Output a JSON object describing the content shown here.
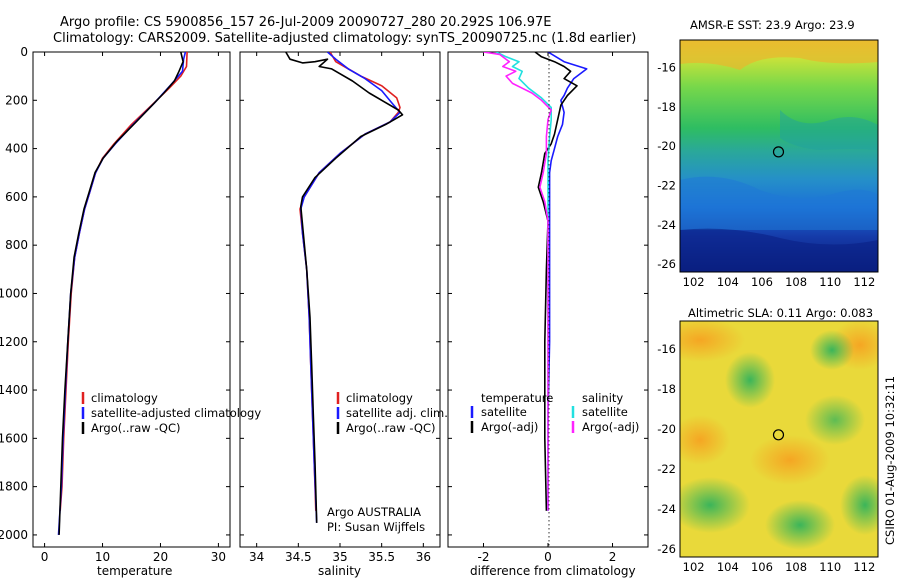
{
  "header": {
    "title_line1": "Argo profile: CS 5900856_157 26-Jul-2009 20090727_280 20.292S 106.97E",
    "title_line2": "Climatology: CARS2009. Satellite-adjusted climatology: synTS_20090725.nc (1.8d earlier)"
  },
  "colors": {
    "climatology": "#e02020",
    "satellite": "#1a1aff",
    "argo": "#000000",
    "salinity_sat": "#22e0e0",
    "salinity_argo": "#ff22ff"
  },
  "chart_data": [
    {
      "id": "temperature",
      "type": "line",
      "xlabel": "temperature",
      "xlim": [
        -2,
        32
      ],
      "ylim": [
        2050,
        0
      ],
      "y_reversed": true,
      "xticks": [
        0,
        10,
        20,
        30
      ],
      "yticks": [
        0,
        200,
        400,
        600,
        800,
        1000,
        1200,
        1400,
        1600,
        1800,
        2000
      ],
      "legend": {
        "position": "lower-right",
        "entries": [
          "climatology",
          "satellite-adjusted climatology",
          "Argo(..raw -QC)"
        ]
      },
      "series": [
        {
          "name": "climatology",
          "color": "#e02020",
          "points": [
            [
              24.6,
              0
            ],
            [
              24.5,
              60
            ],
            [
              23.5,
              100
            ],
            [
              21.5,
              150
            ],
            [
              18.5,
              220
            ],
            [
              15,
              300
            ],
            [
              12,
              380
            ],
            [
              10,
              440
            ],
            [
              8.8,
              500
            ],
            [
              7.8,
              580
            ],
            [
              6.9,
              650
            ],
            [
              6,
              750
            ],
            [
              5.2,
              850
            ],
            [
              4.6,
              1000
            ],
            [
              4.1,
              1200
            ],
            [
              3.7,
              1400
            ],
            [
              3.3,
              1600
            ],
            [
              3.0,
              1800
            ],
            [
              2.7,
              1900
            ]
          ]
        },
        {
          "name": "satellite-adjusted climatology",
          "color": "#1a1aff",
          "points": [
            [
              24.3,
              0
            ],
            [
              24.0,
              30
            ],
            [
              23.8,
              80
            ],
            [
              22,
              130
            ],
            [
              19,
              210
            ],
            [
              15.3,
              300
            ],
            [
              12.2,
              380
            ],
            [
              10.1,
              440
            ],
            [
              8.8,
              500
            ],
            [
              7.8,
              580
            ],
            [
              6.9,
              650
            ],
            [
              6,
              750
            ],
            [
              5.2,
              850
            ],
            [
              4.5,
              1000
            ],
            [
              4.0,
              1200
            ],
            [
              3.6,
              1400
            ],
            [
              3.2,
              1600
            ],
            [
              2.9,
              1800
            ],
            [
              2.4,
              2000
            ]
          ]
        },
        {
          "name": "Argo(..raw -QC)",
          "color": "#000000",
          "points": [
            [
              23.5,
              0
            ],
            [
              23.9,
              40
            ],
            [
              23.2,
              80
            ],
            [
              22.4,
              120
            ],
            [
              20.6,
              170
            ],
            [
              18.6,
              220
            ],
            [
              15.8,
              290
            ],
            [
              12.5,
              370
            ],
            [
              10.1,
              440
            ],
            [
              8.7,
              500
            ],
            [
              7.7,
              580
            ],
            [
              6.8,
              650
            ],
            [
              5.9,
              750
            ],
            [
              5.1,
              850
            ],
            [
              4.5,
              1000
            ],
            [
              4.0,
              1200
            ],
            [
              3.5,
              1400
            ],
            [
              3.1,
              1600
            ],
            [
              2.8,
              1800
            ],
            [
              2.5,
              2000
            ]
          ]
        }
      ]
    },
    {
      "id": "salinity",
      "type": "line",
      "xlabel": "salinity",
      "xlim": [
        33.8,
        36.2
      ],
      "ylim": [
        2050,
        0
      ],
      "y_reversed": true,
      "xticks": [
        34,
        34.5,
        35,
        35.5,
        36
      ],
      "legend": {
        "position": "lower-right",
        "entries": [
          "climatology",
          "satellite adj. clim.",
          "Argo(..raw -QC)"
        ]
      },
      "annotation": [
        "Argo AUSTRALIA",
        "PI: Susan Wijffels"
      ],
      "series": [
        {
          "name": "climatology",
          "color": "#e02020",
          "points": [
            [
              34.88,
              0
            ],
            [
              34.95,
              40
            ],
            [
              35.05,
              60
            ],
            [
              35.25,
              100
            ],
            [
              35.5,
              140
            ],
            [
              35.68,
              190
            ],
            [
              35.72,
              230
            ],
            [
              35.7,
              250
            ],
            [
              35.6,
              290
            ],
            [
              35.3,
              340
            ],
            [
              35.0,
              420
            ],
            [
              34.75,
              500
            ],
            [
              34.57,
              600
            ],
            [
              34.52,
              650
            ],
            [
              34.55,
              750
            ],
            [
              34.6,
              900
            ],
            [
              34.63,
              1100
            ],
            [
              34.65,
              1300
            ],
            [
              34.67,
              1500
            ],
            [
              34.69,
              1700
            ],
            [
              34.71,
              1900
            ]
          ]
        },
        {
          "name": "satellite adj. clim.",
          "color": "#1a1aff",
          "points": [
            [
              34.85,
              0
            ],
            [
              34.95,
              30
            ],
            [
              35.1,
              70
            ],
            [
              35.3,
              110
            ],
            [
              35.5,
              160
            ],
            [
              35.62,
              210
            ],
            [
              35.72,
              250
            ],
            [
              35.6,
              290
            ],
            [
              35.3,
              340
            ],
            [
              35.0,
              420
            ],
            [
              34.75,
              500
            ],
            [
              34.57,
              600
            ],
            [
              34.53,
              650
            ],
            [
              34.55,
              750
            ],
            [
              34.6,
              900
            ],
            [
              34.63,
              1100
            ],
            [
              34.65,
              1300
            ],
            [
              34.67,
              1500
            ],
            [
              34.69,
              1700
            ],
            [
              34.72,
              1950
            ]
          ]
        },
        {
          "name": "Argo(..raw -QC)",
          "color": "#000000",
          "points": [
            [
              34.35,
              0
            ],
            [
              34.4,
              30
            ],
            [
              34.55,
              45
            ],
            [
              34.7,
              40
            ],
            [
              34.85,
              30
            ],
            [
              34.75,
              60
            ],
            [
              34.9,
              70
            ],
            [
              35.15,
              120
            ],
            [
              35.35,
              170
            ],
            [
              35.5,
              200
            ],
            [
              35.7,
              240
            ],
            [
              35.75,
              260
            ],
            [
              35.55,
              300
            ],
            [
              35.25,
              350
            ],
            [
              34.95,
              440
            ],
            [
              34.7,
              520
            ],
            [
              34.55,
              600
            ],
            [
              34.53,
              640
            ],
            [
              34.56,
              750
            ],
            [
              34.6,
              900
            ],
            [
              34.64,
              1100
            ],
            [
              34.66,
              1300
            ],
            [
              34.68,
              1500
            ],
            [
              34.7,
              1700
            ],
            [
              34.72,
              1950
            ]
          ]
        }
      ]
    },
    {
      "id": "difference",
      "type": "line",
      "xlabel": "difference from climatology",
      "xlim": [
        -3.1,
        3.1
      ],
      "ylim": [
        2050,
        0
      ],
      "y_reversed": true,
      "xticks": [
        -2,
        0,
        2
      ],
      "legend": {
        "position": "lower-right",
        "col1_title": "temperature",
        "col2_title": "salinity",
        "entries": [
          "satellite",
          "Argo(-adj)",
          "satellite",
          "Argo(-adj)"
        ]
      },
      "series": [
        {
          "name": "temperature satellite",
          "color": "#1a1aff",
          "points": [
            [
              0.0,
              0
            ],
            [
              0.5,
              40
            ],
            [
              1.2,
              70
            ],
            [
              0.8,
              110
            ],
            [
              0.6,
              150
            ],
            [
              0.5,
              180
            ],
            [
              0.4,
              200
            ],
            [
              0.5,
              250
            ],
            [
              0.45,
              300
            ],
            [
              0.3,
              350
            ],
            [
              0.2,
              400
            ],
            [
              0.1,
              450
            ],
            [
              0.05,
              500
            ],
            [
              0.05,
              600
            ],
            [
              0.05,
              700
            ],
            [
              0.05,
              900
            ],
            [
              0.05,
              1200
            ],
            [
              0.0,
              1500
            ],
            [
              0.0,
              1900
            ]
          ]
        },
        {
          "name": "temperature Argo(-adj)",
          "color": "#000000",
          "points": [
            [
              -0.4,
              0
            ],
            [
              -0.2,
              20
            ],
            [
              0.2,
              40
            ],
            [
              0.5,
              60
            ],
            [
              0.7,
              80
            ],
            [
              0.5,
              110
            ],
            [
              0.9,
              140
            ],
            [
              0.6,
              180
            ],
            [
              0.4,
              220
            ],
            [
              0.3,
              280
            ],
            [
              0.2,
              340
            ],
            [
              0.1,
              380
            ],
            [
              -0.1,
              420
            ],
            [
              -0.2,
              500
            ],
            [
              -0.3,
              560
            ],
            [
              -0.15,
              620
            ],
            [
              0.0,
              700
            ],
            [
              -0.05,
              900
            ],
            [
              -0.1,
              1200
            ],
            [
              -0.1,
              1600
            ],
            [
              -0.05,
              1900
            ]
          ]
        },
        {
          "name": "salinity satellite",
          "color": "#22e0e0",
          "points": [
            [
              -1.6,
              0
            ],
            [
              -1.3,
              20
            ],
            [
              -0.9,
              40
            ],
            [
              -1.1,
              60
            ],
            [
              -0.8,
              80
            ],
            [
              -0.9,
              110
            ],
            [
              -0.6,
              150
            ],
            [
              -0.2,
              190
            ],
            [
              0.1,
              230
            ],
            [
              0.1,
              280
            ],
            [
              0.05,
              350
            ],
            [
              0.0,
              450
            ],
            [
              0.0,
              600
            ],
            [
              0.0,
              900
            ],
            [
              0.0,
              1200
            ],
            [
              0.0,
              1600
            ],
            [
              0.0,
              1900
            ]
          ]
        },
        {
          "name": "salinity Argo(-adj)",
          "color": "#ff22ff",
          "points": [
            [
              -2.0,
              0
            ],
            [
              -1.5,
              10
            ],
            [
              -1.2,
              40
            ],
            [
              -1.4,
              60
            ],
            [
              -1.0,
              80
            ],
            [
              -1.3,
              100
            ],
            [
              -1.1,
              130
            ],
            [
              -0.8,
              150
            ],
            [
              -0.5,
              170
            ],
            [
              -0.2,
              200
            ],
            [
              0.1,
              240
            ],
            [
              0.0,
              280
            ],
            [
              -0.05,
              350
            ],
            [
              -0.05,
              420
            ],
            [
              -0.15,
              500
            ],
            [
              -0.25,
              560
            ],
            [
              -0.1,
              620
            ],
            [
              0.0,
              700
            ],
            [
              0.0,
              900
            ],
            [
              0.0,
              1200
            ],
            [
              0.0,
              1600
            ],
            [
              0.0,
              1900
            ]
          ]
        }
      ]
    },
    {
      "id": "sst_map",
      "type": "heatmap",
      "title": "AMSR-E SST: 23.9  Argo: 23.9",
      "xticks": [
        102,
        104,
        106,
        108,
        110,
        112
      ],
      "yticks": [
        -16,
        -18,
        -20,
        -22,
        -24,
        -26
      ],
      "xlim": [
        101.2,
        112.8
      ],
      "ylim": [
        -26.4,
        -14.6
      ],
      "marker": [
        106.97,
        -20.29
      ],
      "colormap": "jet-like: warm north (yellow/orange), cool south (blue)"
    },
    {
      "id": "sla_map",
      "type": "heatmap",
      "title": "Altimetric SLA: 0.11  Argo: 0.083",
      "xticks": [
        102,
        104,
        106,
        108,
        110,
        112
      ],
      "yticks": [
        -16,
        -18,
        -20,
        -22,
        -24,
        -26
      ],
      "xlim": [
        101.2,
        112.8
      ],
      "ylim": [
        -26.4,
        -14.6
      ],
      "marker": [
        106.97,
        -20.29
      ],
      "colormap": "mostly yellow/orange with green eddies"
    }
  ],
  "footer": {
    "credit": "CSIRO 01-Aug-2009 10:32:11"
  }
}
